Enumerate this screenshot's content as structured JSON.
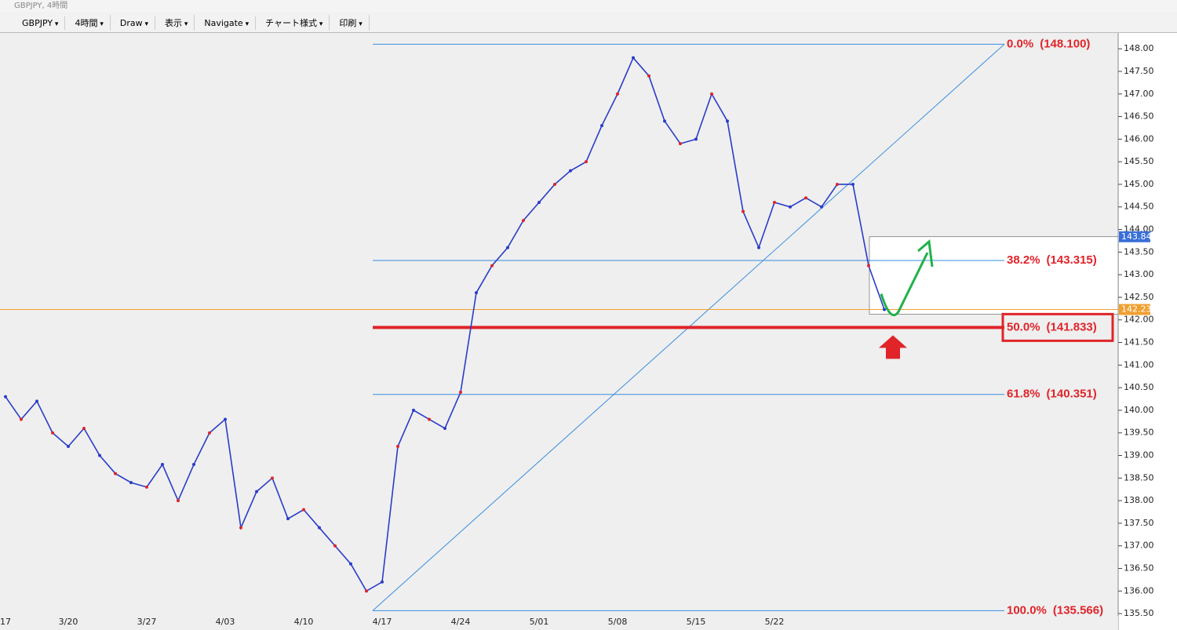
{
  "window": {
    "title": "GBPJPY, 4時間"
  },
  "toolbar": {
    "items": [
      "GBPJPY",
      "4時間",
      "Draw",
      "表示",
      "Navigate",
      "チャート様式",
      "印刷"
    ]
  },
  "chart_data": {
    "type": "line",
    "color": "#2a3cc8",
    "categories": [
      "17",
      null,
      null,
      null,
      "3/20",
      null,
      null,
      null,
      null,
      "3/27",
      null,
      null,
      null,
      null,
      "4/03",
      null,
      null,
      null,
      null,
      "4/10",
      null,
      null,
      null,
      null,
      "4/17",
      null,
      null,
      null,
      null,
      "4/24",
      null,
      null,
      null,
      null,
      "5/01",
      null,
      null,
      null,
      null,
      "5/08",
      null,
      null,
      null,
      null,
      "5/15",
      null,
      null,
      null,
      null,
      "5/22",
      null,
      null,
      null,
      null,
      null,
      null,
      null
    ],
    "values": [
      140.3,
      139.8,
      140.2,
      139.5,
      139.2,
      139.6,
      139.0,
      138.6,
      138.4,
      138.3,
      138.8,
      138.0,
      138.8,
      139.5,
      139.8,
      137.4,
      138.2,
      138.5,
      137.6,
      137.8,
      137.4,
      137.0,
      136.6,
      136.0,
      136.2,
      139.2,
      140.0,
      139.8,
      139.6,
      140.4,
      142.6,
      143.2,
      143.6,
      144.2,
      144.6,
      145.0,
      145.3,
      145.5,
      146.3,
      147.0,
      147.8,
      147.4,
      146.4,
      145.9,
      146.0,
      147.0,
      146.4,
      144.4,
      143.6,
      144.6,
      144.5,
      144.7,
      144.5,
      145.0,
      145.0,
      143.2,
      142.23
    ],
    "ylim": [
      135.45,
      148.35
    ],
    "yticks": [
      {
        "value": 135.5,
        "label": "135.50"
      },
      {
        "value": 136,
        "label": "136.00"
      },
      {
        "value": 136.5,
        "label": "136.50"
      },
      {
        "value": 137,
        "label": "137.00"
      },
      {
        "value": 137.5,
        "label": "137.50"
      },
      {
        "value": 138,
        "label": "138.00"
      },
      {
        "value": 138.5,
        "label": "138.50"
      },
      {
        "value": 139,
        "label": "139.00"
      },
      {
        "value": 139.5,
        "label": "139.50"
      },
      {
        "value": 140,
        "label": "140.00"
      },
      {
        "value": 140.5,
        "label": "140.50"
      },
      {
        "value": 141,
        "label": "141.00"
      },
      {
        "value": 141.5,
        "label": "141.50"
      },
      {
        "value": 142,
        "label": "142.00"
      },
      {
        "value": 142.5,
        "label": "142.50"
      },
      {
        "value": 143,
        "label": "143.00"
      },
      {
        "value": 143.5,
        "label": "143.50"
      },
      {
        "value": 144,
        "label": "144.00"
      },
      {
        "value": 144.5,
        "label": "144.50"
      },
      {
        "value": 145,
        "label": "145.00"
      },
      {
        "value": 145.5,
        "label": "145.50"
      },
      {
        "value": 146,
        "label": "146.00"
      },
      {
        "value": 146.5,
        "label": "146.50"
      },
      {
        "value": 147,
        "label": "147.00"
      },
      {
        "value": 147.5,
        "label": "147.50"
      },
      {
        "value": 148,
        "label": "148.00"
      }
    ],
    "fibonacci": [
      {
        "label": "0.0%",
        "price": 148.1,
        "price_label": "(148.100)"
      },
      {
        "label": "38.2%",
        "price": 143.315,
        "price_label": "(143.315)"
      },
      {
        "label": "50.0%",
        "price": 141.833,
        "price_label": "(141.833)",
        "highlight": true
      },
      {
        "label": "61.8%",
        "price": 140.351,
        "price_label": "(140.351)"
      },
      {
        "label": "100.0%",
        "price": 135.566,
        "price_label": "(135.566)"
      }
    ],
    "price_tags": [
      {
        "value": 143.84,
        "color": "#3a6fd8"
      },
      {
        "value": 142.23,
        "color": "#f0a030"
      }
    ]
  }
}
